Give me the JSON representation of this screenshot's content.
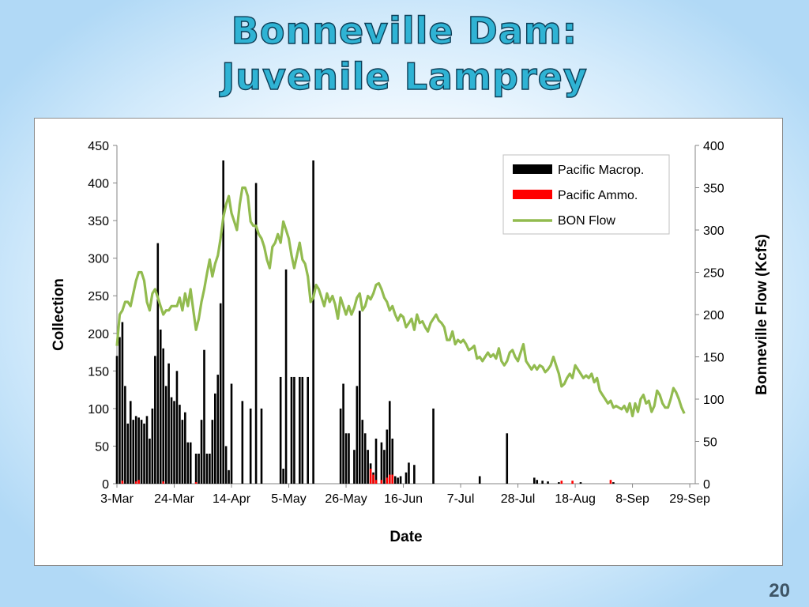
{
  "slide": {
    "title_line1": "Bonneville Dam:",
    "title_line2": "Juvenile Lamprey",
    "page_number": "20"
  },
  "colors": {
    "macrop": "#000000",
    "ammo": "#ff0000",
    "flow": "#92bb4f",
    "title_fill": "#2fb3d4",
    "title_stroke": "#0d3d56"
  },
  "chart_data": {
    "type": "bar",
    "xlabel": "Date",
    "ylabel": "Collection",
    "y2label": "Bonneville Flow (Kcfs)",
    "ylim": [
      0,
      450
    ],
    "y2lim": [
      0,
      400
    ],
    "yticks": [
      "0",
      "50",
      "100",
      "150",
      "200",
      "250",
      "300",
      "350",
      "400",
      "450"
    ],
    "y2ticks": [
      "0",
      "50",
      "100",
      "150",
      "200",
      "250",
      "300",
      "350",
      "400"
    ],
    "xticks": [
      {
        "day": 0,
        "label": "3-Mar"
      },
      {
        "day": 21,
        "label": "24-Mar"
      },
      {
        "day": 42,
        "label": "14-Apr"
      },
      {
        "day": 63,
        "label": "5-May"
      },
      {
        "day": 84,
        "label": "26-May"
      },
      {
        "day": 105,
        "label": "16-Jun"
      },
      {
        "day": 126,
        "label": "7-Jul"
      },
      {
        "day": 147,
        "label": "28-Jul"
      },
      {
        "day": 168,
        "label": "18-Aug"
      },
      {
        "day": 189,
        "label": "8-Sep"
      },
      {
        "day": 210,
        "label": "29-Sep"
      }
    ],
    "x_range_days": [
      0,
      212
    ],
    "legend_position": "top-right",
    "series": [
      {
        "name": "Pacific Macrop.",
        "kind": "bar",
        "axis": "left",
        "points": [
          [
            0,
            170
          ],
          [
            1,
            195
          ],
          [
            2,
            215
          ],
          [
            3,
            130
          ],
          [
            4,
            80
          ],
          [
            5,
            110
          ],
          [
            6,
            85
          ],
          [
            7,
            90
          ],
          [
            8,
            88
          ],
          [
            9,
            85
          ],
          [
            10,
            80
          ],
          [
            11,
            90
          ],
          [
            12,
            60
          ],
          [
            13,
            100
          ],
          [
            14,
            170
          ],
          [
            15,
            320
          ],
          [
            16,
            205
          ],
          [
            17,
            180
          ],
          [
            18,
            130
          ],
          [
            19,
            160
          ],
          [
            20,
            115
          ],
          [
            21,
            110
          ],
          [
            22,
            150
          ],
          [
            23,
            105
          ],
          [
            24,
            85
          ],
          [
            25,
            95
          ],
          [
            26,
            55
          ],
          [
            27,
            55
          ],
          [
            29,
            40
          ],
          [
            30,
            40
          ],
          [
            31,
            85
          ],
          [
            32,
            178
          ],
          [
            33,
            40
          ],
          [
            34,
            40
          ],
          [
            35,
            85
          ],
          [
            36,
            120
          ],
          [
            37,
            145
          ],
          [
            38,
            240
          ],
          [
            39,
            430
          ],
          [
            40,
            50
          ],
          [
            41,
            18
          ],
          [
            42,
            133
          ],
          [
            46,
            110
          ],
          [
            49,
            100
          ],
          [
            51,
            400
          ],
          [
            53,
            100
          ],
          [
            60,
            142
          ],
          [
            61,
            20
          ],
          [
            62,
            285
          ],
          [
            64,
            142
          ],
          [
            65,
            142
          ],
          [
            67,
            142
          ],
          [
            68,
            142
          ],
          [
            70,
            142
          ],
          [
            72,
            430
          ],
          [
            82,
            100
          ],
          [
            83,
            133
          ],
          [
            84,
            67
          ],
          [
            85,
            67
          ],
          [
            87,
            45
          ],
          [
            88,
            130
          ],
          [
            89,
            230
          ],
          [
            90,
            85
          ],
          [
            91,
            67
          ],
          [
            92,
            45
          ],
          [
            93,
            27
          ],
          [
            94,
            15
          ],
          [
            95,
            60
          ],
          [
            97,
            55
          ],
          [
            98,
            45
          ],
          [
            99,
            72
          ],
          [
            100,
            110
          ],
          [
            101,
            60
          ],
          [
            102,
            10
          ],
          [
            103,
            8
          ],
          [
            104,
            10
          ],
          [
            106,
            15
          ],
          [
            107,
            28
          ],
          [
            109,
            25
          ],
          [
            116,
            100
          ],
          [
            133,
            10
          ],
          [
            143,
            67
          ],
          [
            153,
            8
          ],
          [
            154,
            5
          ],
          [
            156,
            4
          ],
          [
            158,
            3
          ],
          [
            162,
            2
          ],
          [
            170,
            2
          ],
          [
            182,
            2
          ]
        ]
      },
      {
        "name": "Pacific Ammo.",
        "kind": "bar",
        "axis": "left",
        "points": [
          [
            2,
            4
          ],
          [
            7,
            3
          ],
          [
            8,
            5
          ],
          [
            17,
            3
          ],
          [
            29,
            2
          ],
          [
            93,
            20
          ],
          [
            94,
            12
          ],
          [
            95,
            5
          ],
          [
            97,
            5
          ],
          [
            99,
            8
          ],
          [
            100,
            12
          ],
          [
            101,
            12
          ],
          [
            163,
            4
          ],
          [
            167,
            4
          ],
          [
            181,
            5
          ]
        ]
      },
      {
        "name": "BON Flow",
        "kind": "line",
        "axis": "right",
        "points": [
          [
            0,
            163
          ],
          [
            1,
            200
          ],
          [
            2,
            205
          ],
          [
            3,
            215
          ],
          [
            4,
            215
          ],
          [
            5,
            210
          ],
          [
            6,
            225
          ],
          [
            7,
            240
          ],
          [
            8,
            250
          ],
          [
            9,
            250
          ],
          [
            10,
            240
          ],
          [
            11,
            215
          ],
          [
            12,
            205
          ],
          [
            13,
            225
          ],
          [
            14,
            230
          ],
          [
            15,
            220
          ],
          [
            16,
            210
          ],
          [
            17,
            200
          ],
          [
            18,
            205
          ],
          [
            19,
            205
          ],
          [
            20,
            210
          ],
          [
            21,
            210
          ],
          [
            22,
            210
          ],
          [
            23,
            220
          ],
          [
            24,
            205
          ],
          [
            25,
            225
          ],
          [
            26,
            210
          ],
          [
            27,
            230
          ],
          [
            28,
            205
          ],
          [
            29,
            182
          ],
          [
            30,
            195
          ],
          [
            31,
            215
          ],
          [
            32,
            230
          ],
          [
            33,
            248
          ],
          [
            34,
            265
          ],
          [
            35,
            245
          ],
          [
            36,
            260
          ],
          [
            37,
            270
          ],
          [
            38,
            290
          ],
          [
            39,
            315
          ],
          [
            40,
            330
          ],
          [
            41,
            340
          ],
          [
            42,
            320
          ],
          [
            43,
            310
          ],
          [
            44,
            300
          ],
          [
            45,
            330
          ],
          [
            46,
            350
          ],
          [
            47,
            350
          ],
          [
            48,
            340
          ],
          [
            49,
            310
          ],
          [
            50,
            305
          ],
          [
            51,
            305
          ],
          [
            52,
            295
          ],
          [
            53,
            290
          ],
          [
            54,
            280
          ],
          [
            55,
            265
          ],
          [
            56,
            255
          ],
          [
            57,
            280
          ],
          [
            58,
            285
          ],
          [
            59,
            295
          ],
          [
            60,
            285
          ],
          [
            61,
            310
          ],
          [
            62,
            300
          ],
          [
            63,
            290
          ],
          [
            64,
            270
          ],
          [
            65,
            255
          ],
          [
            66,
            270
          ],
          [
            67,
            285
          ],
          [
            68,
            265
          ],
          [
            69,
            260
          ],
          [
            70,
            245
          ],
          [
            71,
            215
          ],
          [
            72,
            220
          ],
          [
            73,
            235
          ],
          [
            74,
            230
          ],
          [
            75,
            220
          ],
          [
            76,
            210
          ],
          [
            77,
            225
          ],
          [
            78,
            215
          ],
          [
            79,
            222
          ],
          [
            80,
            212
          ],
          [
            81,
            195
          ],
          [
            82,
            220
          ],
          [
            83,
            210
          ],
          [
            84,
            200
          ],
          [
            85,
            210
          ],
          [
            86,
            200
          ],
          [
            87,
            208
          ],
          [
            88,
            220
          ],
          [
            89,
            225
          ],
          [
            90,
            205
          ],
          [
            91,
            210
          ],
          [
            92,
            222
          ],
          [
            93,
            218
          ],
          [
            94,
            225
          ],
          [
            95,
            235
          ],
          [
            96,
            237
          ],
          [
            97,
            230
          ],
          [
            98,
            220
          ],
          [
            99,
            215
          ],
          [
            100,
            205
          ],
          [
            101,
            210
          ],
          [
            102,
            200
          ],
          [
            103,
            193
          ],
          [
            104,
            200
          ],
          [
            105,
            197
          ],
          [
            106,
            185
          ],
          [
            107,
            190
          ],
          [
            108,
            195
          ],
          [
            109,
            182
          ],
          [
            110,
            200
          ],
          [
            111,
            190
          ],
          [
            112,
            192
          ],
          [
            113,
            185
          ],
          [
            114,
            180
          ],
          [
            115,
            190
          ],
          [
            116,
            195
          ],
          [
            117,
            200
          ],
          [
            118,
            193
          ],
          [
            119,
            190
          ],
          [
            120,
            185
          ],
          [
            121,
            170
          ],
          [
            122,
            170
          ],
          [
            123,
            180
          ],
          [
            124,
            165
          ],
          [
            125,
            170
          ],
          [
            126,
            167
          ],
          [
            127,
            170
          ],
          [
            128,
            165
          ],
          [
            129,
            158
          ],
          [
            130,
            160
          ],
          [
            131,
            163
          ],
          [
            132,
            148
          ],
          [
            133,
            150
          ],
          [
            134,
            145
          ],
          [
            135,
            150
          ],
          [
            136,
            155
          ],
          [
            137,
            150
          ],
          [
            138,
            153
          ],
          [
            139,
            148
          ],
          [
            140,
            160
          ],
          [
            141,
            145
          ],
          [
            142,
            140
          ],
          [
            143,
            145
          ],
          [
            144,
            155
          ],
          [
            145,
            158
          ],
          [
            146,
            150
          ],
          [
            147,
            145
          ],
          [
            148,
            155
          ],
          [
            149,
            165
          ],
          [
            150,
            145
          ],
          [
            151,
            140
          ],
          [
            152,
            135
          ],
          [
            153,
            140
          ],
          [
            154,
            135
          ],
          [
            155,
            140
          ],
          [
            156,
            138
          ],
          [
            157,
            132
          ],
          [
            158,
            135
          ],
          [
            159,
            140
          ],
          [
            160,
            150
          ],
          [
            161,
            140
          ],
          [
            162,
            130
          ],
          [
            163,
            115
          ],
          [
            164,
            118
          ],
          [
            165,
            125
          ],
          [
            166,
            130
          ],
          [
            167,
            125
          ],
          [
            168,
            140
          ],
          [
            169,
            135
          ],
          [
            170,
            130
          ],
          [
            171,
            125
          ],
          [
            172,
            128
          ],
          [
            173,
            125
          ],
          [
            174,
            130
          ],
          [
            175,
            120
          ],
          [
            176,
            125
          ],
          [
            177,
            110
          ],
          [
            178,
            105
          ],
          [
            179,
            100
          ],
          [
            180,
            95
          ],
          [
            181,
            98
          ],
          [
            182,
            90
          ],
          [
            183,
            92
          ],
          [
            184,
            90
          ],
          [
            185,
            88
          ],
          [
            186,
            92
          ],
          [
            187,
            85
          ],
          [
            188,
            95
          ],
          [
            189,
            80
          ],
          [
            190,
            95
          ],
          [
            191,
            85
          ],
          [
            192,
            100
          ],
          [
            193,
            105
          ],
          [
            194,
            95
          ],
          [
            195,
            98
          ],
          [
            196,
            85
          ],
          [
            197,
            92
          ],
          [
            198,
            110
          ],
          [
            199,
            105
          ],
          [
            200,
            95
          ],
          [
            201,
            90
          ],
          [
            202,
            90
          ],
          [
            203,
            100
          ],
          [
            204,
            113
          ],
          [
            205,
            108
          ],
          [
            206,
            100
          ],
          [
            207,
            90
          ],
          [
            208,
            83
          ]
        ]
      }
    ]
  }
}
